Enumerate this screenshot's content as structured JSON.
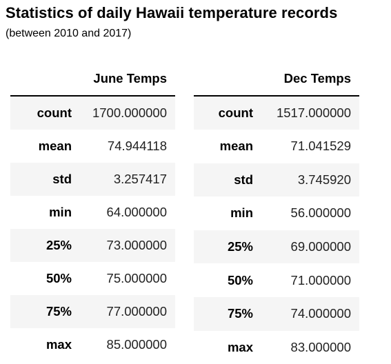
{
  "title": "Statistics of daily Hawaii temperature records",
  "subtitle": "(between 2010 and 2017)",
  "june": {
    "header": "June Temps",
    "rows": [
      {
        "label": "count",
        "value": "1700.000000"
      },
      {
        "label": "mean",
        "value": "74.944118"
      },
      {
        "label": "std",
        "value": "3.257417"
      },
      {
        "label": "min",
        "value": "64.000000"
      },
      {
        "label": "25%",
        "value": "73.000000"
      },
      {
        "label": "50%",
        "value": "75.000000"
      },
      {
        "label": "75%",
        "value": "77.000000"
      },
      {
        "label": "max",
        "value": "85.000000"
      }
    ]
  },
  "dec": {
    "header": "Dec Temps",
    "rows": [
      {
        "label": "count",
        "value": "1517.000000"
      },
      {
        "label": "mean",
        "value": "71.041529"
      },
      {
        "label": "std",
        "value": "3.745920"
      },
      {
        "label": "min",
        "value": "56.000000"
      },
      {
        "label": "25%",
        "value": "69.000000"
      },
      {
        "label": "50%",
        "value": "71.000000"
      },
      {
        "label": "75%",
        "value": "74.000000"
      },
      {
        "label": "max",
        "value": "83.000000"
      }
    ]
  }
}
